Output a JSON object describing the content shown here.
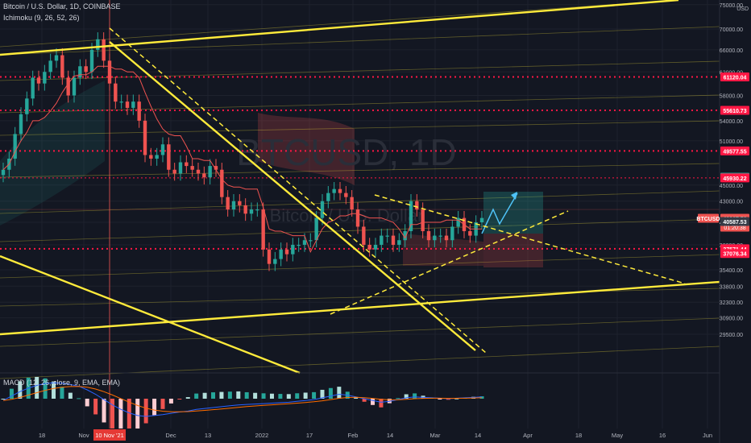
{
  "header": {
    "symbol_line": "Bitcoin / U.S. Dollar, 1D, COINBASE",
    "indicator_line": "Ichimoku (9, 26, 52, 26)",
    "macd_line": "MACD (12, 26, close, 9, EMA, EMA)"
  },
  "watermark": {
    "main": "BTCUSD, 1D",
    "sub": "Bitcoin / U.S. Dollar"
  },
  "colors": {
    "background": "#131722",
    "up": "#26a69a",
    "down": "#ef5350",
    "trend": "#ffeb3b",
    "level": "#ff1744",
    "tenkan": "#ef5350",
    "macd": "#2962ff",
    "signal": "#ff6d00",
    "projection": "#4fc3f7"
  },
  "chart_data": {
    "type": "line",
    "title": "Bitcoin / U.S. Dollar, 1D, COINBASE",
    "x_ticks": [
      "18",
      "Nov",
      "10 Nov '21",
      "Dec",
      "13",
      "2022",
      "17",
      "Feb",
      "14",
      "Mar",
      "14",
      "Apr",
      "18",
      "May",
      "16",
      "Jun"
    ],
    "highlighted_x_label": "10 Nov '21",
    "y_ticks": [
      "75000.00",
      "70000.00",
      "66000.00",
      "62000.00",
      "58000.00",
      "54000.00",
      "51000.00",
      "45000.00",
      "43000.00",
      "40500.00",
      "38000.00",
      "35400.00",
      "33800.00",
      "32300.00",
      "30900.00",
      "29500.00"
    ],
    "y_unit": "USD",
    "y_scale": "log",
    "ylim": [
      26500,
      76000
    ],
    "price_labels": [
      {
        "value": "61120.04",
        "kind": "level"
      },
      {
        "value": "55610.73",
        "kind": "level"
      },
      {
        "value": "49577.55",
        "kind": "level"
      },
      {
        "value": "46019.03",
        "kind": "green"
      },
      {
        "value": "45930.22",
        "kind": "level"
      },
      {
        "value": "40967.52",
        "kind": "current",
        "symbol": "BTCUSD",
        "countdown": "01:20:38"
      },
      {
        "value": "40587.53",
        "kind": "plain"
      },
      {
        "value": "37571.44",
        "kind": "level"
      },
      {
        "value": "37076.34",
        "kind": "level"
      }
    ],
    "horizontal_levels": [
      61120,
      55610,
      49577,
      45930,
      37571
    ],
    "series": [
      {
        "name": "BTCUSD",
        "type": "candles-approx",
        "values": [
          47000,
          48500,
          52000,
          55000,
          57500,
          61000,
          60000,
          62000,
          64000,
          65000,
          61000,
          58000,
          61000,
          63000,
          62000,
          66000,
          68000,
          64000,
          60000,
          57000,
          57000,
          56000,
          57000,
          54000,
          49000,
          48500,
          49000,
          50500,
          47000,
          46500,
          48000,
          47500,
          47000,
          46500,
          46000,
          47500,
          47000,
          43500,
          42000,
          43000,
          42500,
          41500,
          42000,
          42000,
          37500,
          36000,
          36500,
          37500,
          37000,
          38000,
          38000,
          38500,
          38500,
          41000,
          43000,
          44000,
          44500,
          44000,
          43500,
          42000,
          40000,
          38000,
          37500,
          38000,
          39000,
          39000,
          38000,
          38500,
          39500,
          43000,
          42000,
          39500,
          38500,
          39000,
          39000,
          38500,
          40000,
          41000,
          39500,
          39000,
          40500,
          41000
        ]
      },
      {
        "name": "MACD",
        "pane": "macd",
        "values": [
          -200,
          300,
          800,
          1200,
          1500,
          1700,
          1800,
          1750,
          1600,
          1400,
          1000,
          500,
          -100,
          -700,
          -1200,
          -1600,
          -1900,
          -2000,
          -1900,
          -1800,
          -1650,
          -1500,
          -1400,
          -1200,
          -1100,
          -1000,
          -900,
          -800,
          -700,
          -650,
          -600,
          -550,
          -500,
          -450,
          -400,
          -300,
          -200,
          -100,
          100,
          300,
          500,
          400,
          200,
          0,
          -200,
          -400,
          -300,
          -100,
          100,
          200,
          150,
          100,
          50,
          0,
          50,
          100,
          150,
          200
        ]
      }
    ],
    "macd_ticks": [
      "2000.00",
      "0.00",
      "-2000.00"
    ]
  }
}
